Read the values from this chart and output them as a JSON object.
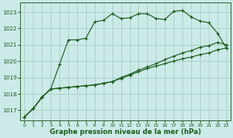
{
  "title": "Graphe pression niveau de la mer (hPa)",
  "bg_color": "#cceae8",
  "grid_color": "#aacfc8",
  "line_color": "#1a5c1a",
  "marker_color": "#1a5c1a",
  "xlim": [
    -0.5,
    23.5
  ],
  "ylim": [
    1016.4,
    1023.6
  ],
  "yticks": [
    1017,
    1018,
    1019,
    1020,
    1021,
    1022,
    1023
  ],
  "xticks": [
    0,
    1,
    2,
    3,
    4,
    5,
    6,
    7,
    8,
    9,
    10,
    11,
    12,
    13,
    14,
    15,
    16,
    17,
    18,
    19,
    20,
    21,
    22,
    23
  ],
  "series": [
    [
      1016.6,
      1017.1,
      1017.8,
      1018.3,
      1019.8,
      1021.3,
      1021.3,
      1021.4,
      1022.4,
      1022.5,
      1022.9,
      1022.6,
      1022.65,
      1022.9,
      1022.9,
      1022.6,
      1022.55,
      1023.05,
      1023.1,
      1022.7,
      1022.45,
      1022.35,
      1021.7,
      1020.8
    ],
    [
      1016.6,
      1017.1,
      1017.8,
      1018.3,
      1018.35,
      1018.4,
      1018.45,
      1018.5,
      1018.55,
      1018.65,
      1018.75,
      1018.95,
      1019.15,
      1019.35,
      1019.55,
      1019.7,
      1019.85,
      1020.0,
      1020.15,
      1020.25,
      1020.4,
      1020.5,
      1020.7,
      1020.8
    ],
    [
      1016.6,
      1017.1,
      1017.8,
      1018.3,
      1018.35,
      1018.4,
      1018.45,
      1018.5,
      1018.55,
      1018.65,
      1018.75,
      1019.0,
      1019.2,
      1019.45,
      1019.65,
      1019.85,
      1020.1,
      1020.3,
      1020.5,
      1020.65,
      1020.85,
      1020.95,
      1021.15,
      1021.0
    ]
  ]
}
